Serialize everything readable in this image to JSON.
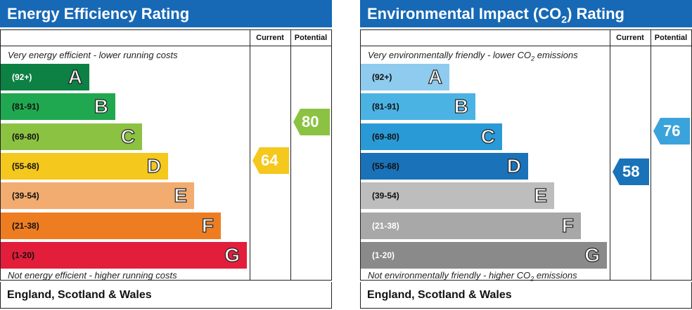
{
  "energy": {
    "title": "Energy Efficiency Rating",
    "col_current": "Current",
    "col_potential": "Potential",
    "top_text": "Very energy efficient - lower running costs",
    "bottom_text": "Not energy efficient - higher running costs",
    "footer": "England, Scotland & Wales",
    "current_value": "64",
    "potential_value": "80",
    "colors": {
      "title_bg": "#1769b5",
      "current": "#f4c81c",
      "potential": "#8cc242"
    },
    "bands": [
      {
        "range": "(92+)",
        "letter": "A",
        "color": "#0d8043",
        "range_color": "#ffffff"
      },
      {
        "range": "(81-91)",
        "letter": "B",
        "color": "#20a850",
        "range_color": "#111111"
      },
      {
        "range": "(69-80)",
        "letter": "C",
        "color": "#8cc242",
        "range_color": "#111111"
      },
      {
        "range": "(55-68)",
        "letter": "D",
        "color": "#f4c81c",
        "range_color": "#111111"
      },
      {
        "range": "(39-54)",
        "letter": "E",
        "color": "#f2ac6f",
        "range_color": "#111111"
      },
      {
        "range": "(21-38)",
        "letter": "F",
        "color": "#ee7d22",
        "range_color": "#111111"
      },
      {
        "range": "(1-20)",
        "letter": "G",
        "color": "#e21e3b",
        "range_color": "#111111"
      }
    ]
  },
  "environment": {
    "title_pre": "Environmental Impact (CO",
    "title_sub": "2",
    "title_post": ") Rating",
    "col_current": "Current",
    "col_potential": "Potential",
    "top_pre": "Very environmentally friendly - lower CO",
    "top_sub": "2",
    "top_post": " emissions",
    "bottom_pre": "Not environmentally friendly - higher CO",
    "bottom_sub": "2",
    "bottom_post": " emissions",
    "footer": "England, Scotland & Wales",
    "current_value": "58",
    "potential_value": "76",
    "colors": {
      "title_bg": "#1769b5",
      "current": "#1a72b9",
      "potential": "#3ba3db"
    },
    "bands": [
      {
        "range": "(92+)",
        "letter": "A",
        "color": "#8ecbee",
        "range_color": "#111111"
      },
      {
        "range": "(81-91)",
        "letter": "B",
        "color": "#4bb3e3",
        "range_color": "#111111"
      },
      {
        "range": "(69-80)",
        "letter": "C",
        "color": "#2a9ad6",
        "range_color": "#111111"
      },
      {
        "range": "(55-68)",
        "letter": "D",
        "color": "#1a72b9",
        "range_color": "#111111"
      },
      {
        "range": "(39-54)",
        "letter": "E",
        "color": "#bdbdbd",
        "range_color": "#111111"
      },
      {
        "range": "(21-38)",
        "letter": "F",
        "color": "#a8a8a8",
        "range_color": "#ffffff"
      },
      {
        "range": "(1-20)",
        "letter": "G",
        "color": "#8a8a8a",
        "range_color": "#ffffff"
      }
    ]
  },
  "chart_data": [
    {
      "type": "bar",
      "title": "Energy Efficiency Rating",
      "categories": [
        "A (92+)",
        "B (81-91)",
        "C (69-80)",
        "D (55-68)",
        "E (39-54)",
        "F (21-38)",
        "G (1-20)"
      ],
      "current": 64,
      "potential": 80
    },
    {
      "type": "bar",
      "title": "Environmental Impact (CO2) Rating",
      "categories": [
        "A (92+)",
        "B (81-91)",
        "C (69-80)",
        "D (55-68)",
        "E (39-54)",
        "F (21-38)",
        "G (1-20)"
      ],
      "current": 58,
      "potential": 76
    }
  ]
}
